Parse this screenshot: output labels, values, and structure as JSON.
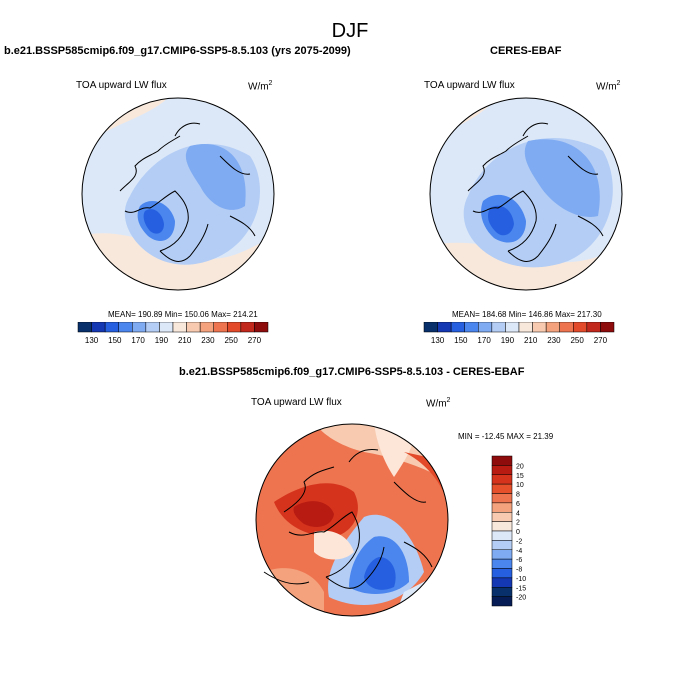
{
  "season": "DJF",
  "panels": [
    {
      "title": "b.e21.BSSP585cmip6.f09_g17.CMIP6-SSP5-8.5.103 (yrs 2075-2099)",
      "variable": "TOA upward LW flux",
      "units": "W/m",
      "units_sup": "2",
      "stats": "MEAN= 190.89  Min= 150.06  Max= 214.21"
    },
    {
      "title": "CERES-EBAF",
      "variable": "TOA upward LW flux",
      "units": "W/m",
      "units_sup": "2",
      "stats": "MEAN= 184.68  Min= 146.86  Max= 217.30"
    },
    {
      "title": "b.e21.BSSP585cmip6.f09_g17.CMIP6-SSP5-8.5.103 - CERES-EBAF",
      "variable": "TOA upward LW flux",
      "units": "W/m",
      "units_sup": "2",
      "stats": "MIN = -12.45 MAX =  21.39"
    }
  ],
  "colorbar_abs": {
    "labels": [
      "130",
      "150",
      "170",
      "190",
      "210",
      "230",
      "250",
      "270"
    ],
    "colors": [
      "#08306b",
      "#1437b4",
      "#2660e0",
      "#4a86ee",
      "#7fabf2",
      "#b3cdf5",
      "#dce8f8",
      "#f8e8dc",
      "#f8cbb0",
      "#f4a27d",
      "#ee7450",
      "#e24a2a",
      "#c3281c",
      "#8e0c0c"
    ]
  },
  "colorbar_diff": {
    "labels": [
      "20",
      "15",
      "10",
      "8",
      "6",
      "4",
      "2",
      "0",
      "-2",
      "-4",
      "-6",
      "-8",
      "-10",
      "-15",
      "-20"
    ],
    "colors": [
      "#8e0c0c",
      "#b81b12",
      "#d5331c",
      "#e6502a",
      "#ee7450",
      "#f4a27d",
      "#f8cbb0",
      "#f8e8dc",
      "#dce8f8",
      "#b3cdf5",
      "#7fabf2",
      "#4a86ee",
      "#2660e0",
      "#1437b4",
      "#08306b",
      "#051c55"
    ]
  }
}
